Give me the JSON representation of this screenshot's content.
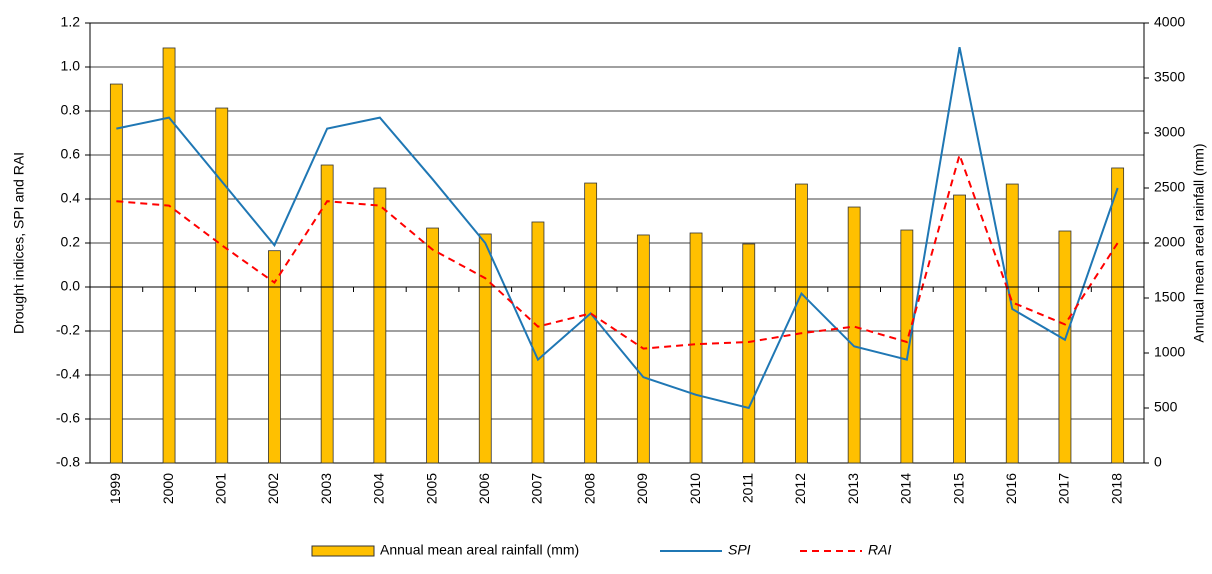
{
  "chart_data": {
    "type": "bar-line",
    "categories": [
      "1999",
      "2000",
      "2001",
      "2002",
      "2003",
      "2004",
      "2005",
      "2006",
      "2007",
      "2008",
      "2009",
      "2010",
      "2011",
      "2012",
      "2013",
      "2014",
      "2015",
      "2016",
      "2017",
      "2018"
    ],
    "series": [
      {
        "name": "Annual mean areal rainfall (mm)",
        "type": "bar",
        "axis": "y2",
        "color": "#FFC000",
        "values": [
          3445,
          3773,
          3227,
          1930,
          2709,
          2500,
          2136,
          2082,
          2191,
          2545,
          2073,
          2091,
          1991,
          2536,
          2327,
          2118,
          2436,
          2536,
          2109,
          2682
        ]
      },
      {
        "name": "SPI",
        "type": "line",
        "color": "#1F77B4",
        "dash": false,
        "values": [
          0.72,
          0.77,
          0.48,
          0.19,
          0.72,
          0.77,
          0.49,
          0.2,
          -0.33,
          -0.12,
          -0.41,
          -0.49,
          -0.55,
          -0.03,
          -0.27,
          -0.33,
          1.09,
          -0.1,
          -0.24,
          0.45
        ]
      },
      {
        "name": "RAI",
        "type": "line",
        "color": "#FF0000",
        "dash": true,
        "values": [
          0.39,
          0.37,
          0.19,
          0.02,
          0.39,
          0.37,
          0.17,
          0.04,
          -0.18,
          -0.12,
          -0.28,
          -0.26,
          -0.25,
          -0.21,
          -0.18,
          -0.25,
          0.6,
          -0.07,
          -0.17,
          0.2
        ]
      }
    ],
    "ylabel": "Drought indices, SPI and RAI",
    "y2label": "Annual mean areal rainfall (mm)",
    "ylim": [
      -0.8,
      1.2
    ],
    "yticks": [
      -0.8,
      -0.6,
      -0.4,
      -0.2,
      {
        "value": 0,
        "label": "0.0"
      },
      0.2,
      0.4,
      0.6,
      0.8,
      {
        "value": 1,
        "label": "1.0"
      },
      1.2
    ],
    "y2lim": [
      0,
      4000
    ],
    "y2ticks": [
      0,
      500,
      1000,
      1500,
      2000,
      2500,
      3000,
      3500,
      4000
    ],
    "grid": true
  }
}
